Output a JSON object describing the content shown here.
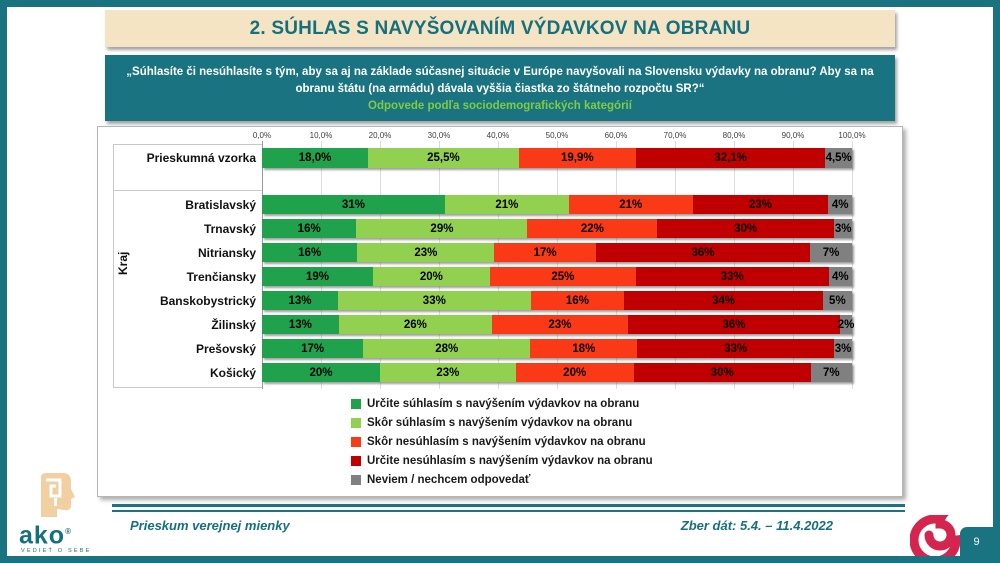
{
  "slide": {
    "title": "2. SÚHLAS S NAVYŠOVANÍM VÝDAVKOV NA OBRANU",
    "question": "„Súhlasíte či nesúhlasíte s tým, aby sa aj na základe súčasnej situácie v Európe navyšovali na Slovensku výdavky na obranu? Aby sa na obranu štátu (na armádu) dávala vyššia čiastka zo štátneho rozpočtu SR?“",
    "question_subtitle": "Odpovede podľa sociodemografických kategórií",
    "footer_left": "Prieskum verejnej mienky",
    "footer_right": "Zber dát: 5.4. – 11.4.2022",
    "page_number": "9",
    "logo_text": "ako",
    "logo_reg": "®",
    "logo_motto": "VEDIEŤ O SEBE"
  },
  "colors": {
    "teal": "#1A7380",
    "cream": "#F5E4C4",
    "subtitle_green": "#7FCB45",
    "spiral_crimson": "#D4254E"
  },
  "chart_data": {
    "type": "bar",
    "stacked": true,
    "orientation": "horizontal",
    "ylabel": "Kraj",
    "xlim": [
      0,
      100
    ],
    "grid": true,
    "legend_position": "bottom",
    "x_ticks": [
      "0,0%",
      "10,0%",
      "20,0%",
      "30,0%",
      "40,0%",
      "50,0%",
      "60,0%",
      "70,0%",
      "80,0%",
      "90,0%",
      "100,0%"
    ],
    "series": [
      {
        "name": "Určite súhlasím s navýšením výdavkov na obranu",
        "color": "#1FA24B"
      },
      {
        "name": "Skôr súhlasím s navýšením výdavkov na obranu",
        "color": "#92D050"
      },
      {
        "name": "Skôr nesúhlasím s navýšením výdavkov na obranu",
        "color": "#FA3917"
      },
      {
        "name": "Určite nesúhlasím s navýšením výdavkov na obranu",
        "color": "#C00000"
      },
      {
        "name": "Neviem / nechcem odpovedať",
        "color": "#808080"
      }
    ],
    "rows": [
      {
        "category": "Prieskumná vzorka",
        "group": "",
        "values": [
          18.0,
          25.5,
          19.9,
          32.1,
          4.5
        ],
        "labels": [
          "18,0%",
          "25,5%",
          "19,9%",
          "32,1%",
          "4,5%"
        ]
      },
      {
        "category": "Bratislavský",
        "group": "Kraj",
        "values": [
          31,
          21,
          21,
          23,
          4
        ],
        "labels": [
          "31%",
          "21%",
          "21%",
          "23%",
          "4%"
        ]
      },
      {
        "category": "Trnavský",
        "group": "Kraj",
        "values": [
          16,
          29,
          22,
          30,
          3
        ],
        "labels": [
          "16%",
          "29%",
          "22%",
          "30%",
          "3%"
        ]
      },
      {
        "category": "Nitriansky",
        "group": "Kraj",
        "values": [
          16,
          23,
          17,
          36,
          7
        ],
        "labels": [
          "16%",
          "23%",
          "17%",
          "36%",
          "7%"
        ]
      },
      {
        "category": "Trenčiansky",
        "group": "Kraj",
        "values": [
          19,
          20,
          25,
          33,
          4
        ],
        "labels": [
          "19%",
          "20%",
          "25%",
          "33%",
          "4%"
        ]
      },
      {
        "category": "Banskobystrický",
        "group": "Kraj",
        "values": [
          13,
          33,
          16,
          34,
          5
        ],
        "labels": [
          "13%",
          "33%",
          "16%",
          "34%",
          "5%"
        ]
      },
      {
        "category": "Žilinský",
        "group": "Kraj",
        "values": [
          13,
          26,
          23,
          36,
          2
        ],
        "labels": [
          "13%",
          "26%",
          "23%",
          "36%",
          "2%"
        ]
      },
      {
        "category": "Prešovský",
        "group": "Kraj",
        "values": [
          17,
          28,
          18,
          33,
          3
        ],
        "labels": [
          "17%",
          "28%",
          "18%",
          "33%",
          "3%"
        ]
      },
      {
        "category": "Košický",
        "group": "Kraj",
        "values": [
          20,
          23,
          20,
          30,
          7
        ],
        "labels": [
          "20%",
          "23%",
          "20%",
          "30%",
          "7%"
        ]
      }
    ]
  }
}
